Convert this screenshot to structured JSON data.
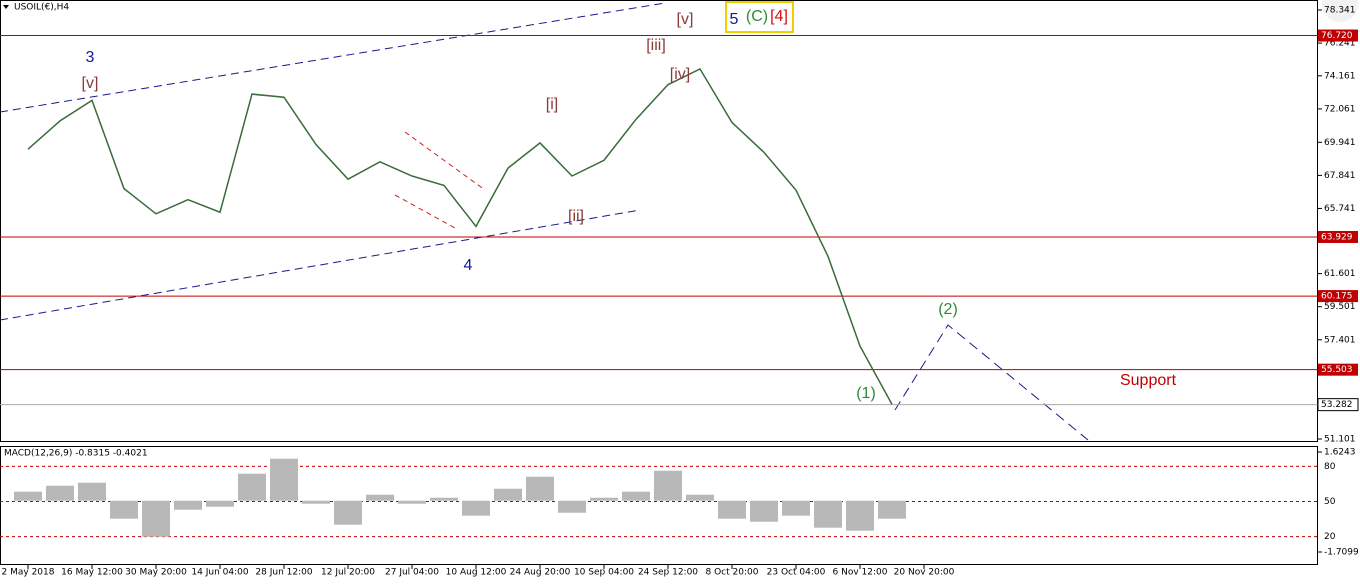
{
  "chart_data": [
    {
      "type": "line",
      "title": "USOIL(€),H4",
      "categories": [
        "2 May 2018",
        null,
        "16 May 12:00",
        null,
        "30 May 20:00",
        null,
        "14 Jun 04:00",
        null,
        "28 Jun 12:00",
        null,
        "12 Jul 20:00",
        null,
        "27 Jul 04:00",
        null,
        "10 Aug 12:00",
        null,
        "24 Aug 20:00",
        null,
        "10 Sep 04:00",
        null,
        "24 Sep 12:00",
        null,
        "8 Oct 20:00",
        null,
        "23 Oct 04:00",
        null,
        "6 Nov 12:00",
        null,
        "20 Nov 20:00"
      ],
      "values": [
        69.5,
        71.3,
        72.6,
        67.0,
        65.4,
        66.3,
        65.5,
        73.0,
        72.8,
        69.8,
        67.6,
        68.7,
        67.8,
        67.2,
        64.6,
        68.3,
        69.9,
        67.8,
        68.8,
        71.4,
        73.6,
        74.6,
        71.2,
        69.3,
        66.9,
        62.7,
        57.0,
        53.3,
        null
      ],
      "color": "#3a6b3a",
      "ylim": [
        51.101,
        78.341
      ],
      "yticks": [
        78.341,
        76.241,
        74.161,
        72.061,
        69.941,
        67.841,
        65.741,
        61.601,
        59.501,
        57.401,
        55.301,
        53.201,
        51.101
      ],
      "levels": [
        {
          "value": 76.72,
          "label": "76.720"
        },
        63.929,
        60.175,
        55.503
      ],
      "level_color": "#c00000",
      "current_price": 53.282,
      "annotations": [
        {
          "text": "3",
          "color": "#0a1aa0"
        },
        {
          "text": "[v]",
          "color": "#8b3a3a"
        },
        {
          "text": "[iii]",
          "color": "#8b3a3a"
        },
        {
          "text": "[v]",
          "color": "#8b3a3a"
        },
        {
          "text": "5",
          "color": "#0a1aa0"
        },
        {
          "text": "(C)",
          "color": "#2e8b3a"
        },
        {
          "text": "[4]",
          "color": "#d01010"
        },
        {
          "text": "[i]",
          "color": "#8b3a3a"
        },
        {
          "text": "[ii]",
          "color": "#8b3a3a"
        },
        {
          "text": "4",
          "color": "#0a1aa0"
        },
        {
          "text": "[iv]",
          "color": "#8b3a3a"
        },
        {
          "text": "(1)",
          "color": "#2e8b3a"
        },
        {
          "text": "(2)",
          "color": "#2e8b3a"
        },
        {
          "text": "Support",
          "color": "#c00000"
        }
      ]
    },
    {
      "type": "bar",
      "title": "MACD(12,26,9) -0.8315 -0.4021",
      "values": [
        0.3,
        0.5,
        0.6,
        -0.6,
        -1.2,
        -0.3,
        -0.2,
        0.9,
        1.4,
        -0.1,
        -0.8,
        0.2,
        -0.1,
        0.1,
        -0.5,
        0.4,
        0.8,
        -0.4,
        0.1,
        0.3,
        1.0,
        0.2,
        -0.6,
        -0.7,
        -0.5,
        -0.9,
        -1.0,
        -0.6,
        null
      ],
      "color": "#b8b8b8",
      "ylim": [
        -1.7099,
        1.6243
      ],
      "yticks": [
        1.6243,
        -1.7099
      ],
      "y2lim": [
        0,
        100
      ],
      "y2ticks": [
        80,
        50,
        20
      ]
    }
  ]
}
